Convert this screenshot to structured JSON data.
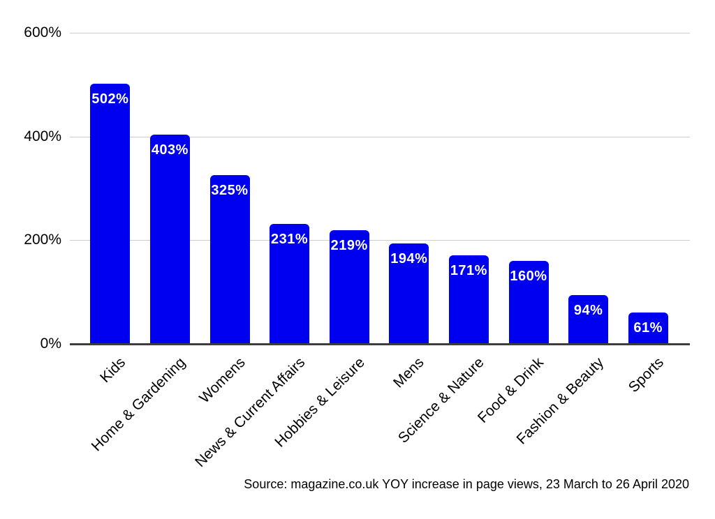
{
  "chart_data": {
    "type": "bar",
    "title": "",
    "categories": [
      "Kids",
      "Home & Gardening",
      "Womens",
      "News & Current Affairs",
      "Hobbies & Leisure",
      "Mens",
      "Science & Nature",
      "Food & Drink",
      "Fashion & Beauty",
      "Sports"
    ],
    "values": [
      502,
      403,
      325,
      231,
      219,
      194,
      171,
      160,
      94,
      61
    ],
    "value_labels": [
      "502%",
      "403%",
      "325%",
      "231%",
      "219%",
      "194%",
      "171%",
      "160%",
      "94%",
      "61%"
    ],
    "y_ticks": [
      {
        "label": "600%",
        "value": 600
      },
      {
        "label": "400%",
        "value": 400
      },
      {
        "label": "200%",
        "value": 200
      },
      {
        "label": "0%",
        "value": 0
      }
    ],
    "ylim": [
      0,
      600
    ],
    "xlabel": "",
    "ylabel": "",
    "grid": true,
    "legend": "none",
    "source": "Source: magazine.co.uk YOY increase in page views, 23 March to 26 April 2020",
    "colors": {
      "bar": "#0000f0",
      "value_label": "#ffffff",
      "gridline": "#cccccc",
      "axis_line": "#3d3d3d",
      "text": "#000000",
      "background": "#ffffff"
    }
  }
}
